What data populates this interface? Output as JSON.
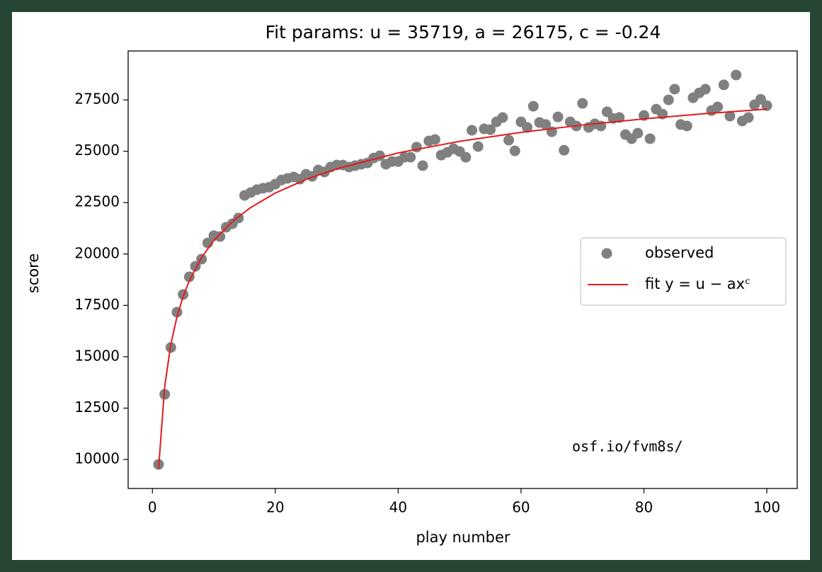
{
  "chart_data": {
    "type": "scatter",
    "title": "Fit params: u = 35719, a = 26175, c = -0.24",
    "x_label": "play number",
    "y_label": "score",
    "annotation": "osf.io/fvm8s/",
    "xlim": [
      -3.95,
      104.95
    ],
    "ylim": [
      8590,
      29880
    ],
    "xticks": [
      0,
      20,
      40,
      60,
      80,
      100
    ],
    "yticks": [
      10000,
      12500,
      15000,
      17500,
      20000,
      22500,
      25000,
      27500
    ],
    "legend": "center right",
    "series": [
      {
        "name": "observed",
        "type": "scatter",
        "color": "#808080",
        "x": [
          1,
          2,
          3,
          4,
          5,
          6,
          7,
          8,
          9,
          10,
          11,
          12,
          13,
          14,
          15,
          16,
          17,
          18,
          19,
          20,
          21,
          22,
          23,
          24,
          25,
          26,
          27,
          28,
          29,
          30,
          31,
          32,
          33,
          34,
          35,
          36,
          37,
          38,
          39,
          40,
          41,
          42,
          43,
          44,
          45,
          46,
          47,
          48,
          49,
          50,
          51,
          52,
          53,
          54,
          55,
          56,
          57,
          58,
          59,
          60,
          61,
          62,
          63,
          64,
          65,
          66,
          67,
          68,
          69,
          70,
          71,
          72,
          73,
          74,
          75,
          76,
          77,
          78,
          79,
          80,
          81,
          82,
          83,
          84,
          85,
          86,
          87,
          88,
          89,
          90,
          91,
          92,
          93,
          94,
          95,
          96,
          97,
          98,
          99,
          100
        ],
        "values": [
          9760,
          13170,
          15450,
          17170,
          18030,
          18890,
          19400,
          19750,
          20540,
          20890,
          20850,
          21300,
          21470,
          21750,
          22850,
          22990,
          23130,
          23200,
          23250,
          23400,
          23600,
          23680,
          23750,
          23640,
          23880,
          23780,
          24090,
          23990,
          24230,
          24330,
          24330,
          24230,
          24300,
          24370,
          24430,
          24670,
          24780,
          24370,
          24500,
          24500,
          24710,
          24710,
          25200,
          24300,
          25500,
          25570,
          24810,
          24950,
          25120,
          24990,
          24710,
          26020,
          25230,
          26090,
          26050,
          26430,
          26640,
          25540,
          25020,
          26430,
          26160,
          27190,
          26400,
          26300,
          25950,
          26670,
          25050,
          26430,
          26230,
          27330,
          26160,
          26330,
          26230,
          26920,
          26600,
          26640,
          25810,
          25610,
          25880,
          26740,
          25610,
          27050,
          26810,
          27500,
          28020,
          26300,
          26230,
          27600,
          27840,
          28020,
          26980,
          27160,
          28230,
          26710,
          28710,
          26470,
          26640,
          27260,
          27530,
          27220
        ]
      },
      {
        "name": "fit y = u − axᶜ",
        "type": "line",
        "color": "#e41a1c",
        "x": [
          1,
          2,
          3,
          4,
          5,
          6,
          8,
          10,
          13,
          16,
          20,
          25,
          30,
          40,
          50,
          60,
          70,
          80,
          90,
          100
        ],
        "values": [
          9544,
          13557,
          15611,
          16952,
          17930,
          18692,
          19828,
          20658,
          21577,
          22263,
          22966,
          23629,
          24147,
          24919,
          25482,
          25919,
          26278,
          26576,
          26830,
          27052
        ]
      }
    ]
  }
}
